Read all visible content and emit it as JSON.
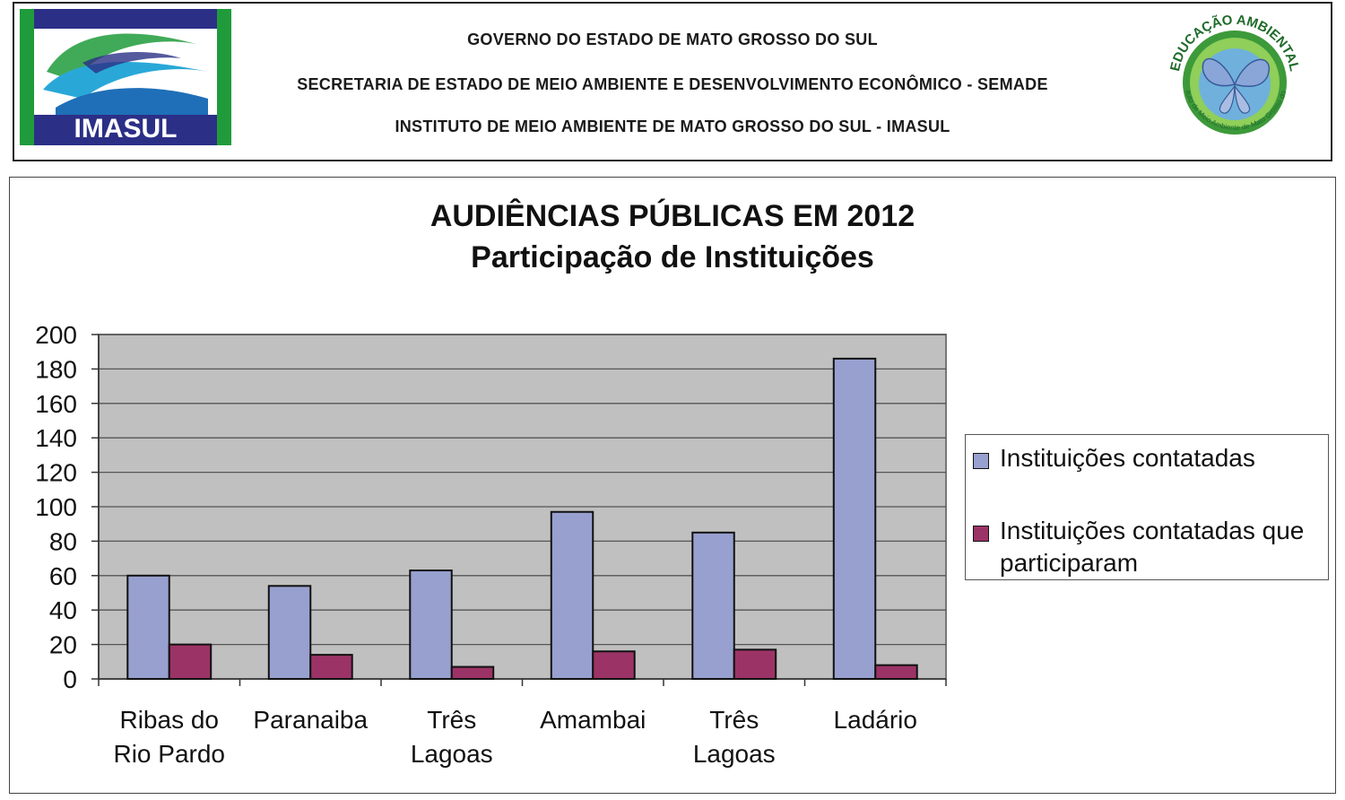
{
  "header": {
    "line1": "GOVERNO DO ESTADO DE MATO GROSSO DO SUL",
    "line2": "SECRETARIA DE ESTADO DE MEIO AMBIENTE E DESENVOLVIMENTO ECONÔMICO - SEMADE",
    "line3": "INSTITUTO DE MEIO AMBIENTE DE MATO GROSSO DO SUL - IMASUL",
    "logo_left_text": "IMASUL",
    "logo_right_text_top": "EDUCAÇÃO AMBIENTAL",
    "logo_right_text_bottom": "Instituto de Meio Ambiente de Mato Grosso do Sul"
  },
  "colors": {
    "series1": "#98a0cf",
    "series2": "#9c3366",
    "plot_bg": "#c0c0c0",
    "imasul_blue": "#2b2f86",
    "imasul_green": "#1f9b3b"
  },
  "chart_data": {
    "type": "bar",
    "title": "AUDIÊNCIAS PÚBLICAS EM 2012",
    "subtitle": "Participação de Instituições",
    "categories": [
      [
        "Ribas do",
        "Rio Pardo"
      ],
      [
        "Paranaiba"
      ],
      [
        "Três",
        "Lagoas"
      ],
      [
        "Amambai"
      ],
      [
        "Três",
        "Lagoas"
      ],
      [
        "Ladário"
      ]
    ],
    "series": [
      {
        "name": "Instituições contatadas",
        "values": [
          60,
          54,
          63,
          97,
          85,
          186
        ]
      },
      {
        "name": "Instituições contatadas que participaram",
        "values": [
          20,
          14,
          7,
          16,
          17,
          8
        ]
      }
    ],
    "ylim": [
      0,
      200
    ],
    "yticks": [
      "0",
      "20",
      "40",
      "60",
      "80",
      "100",
      "120",
      "140",
      "160",
      "180",
      "200"
    ],
    "grid": true,
    "legend_position": "right"
  }
}
